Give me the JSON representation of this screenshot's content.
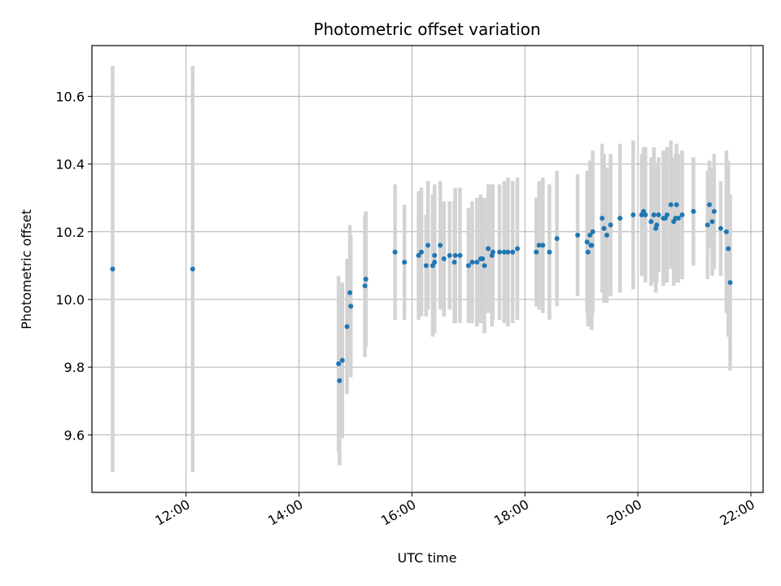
{
  "chart_data": {
    "type": "scatter",
    "title": "Photometric offset variation",
    "xlabel": "UTC time",
    "ylabel": "Photometric offset",
    "x_unit": "hours (UTC)",
    "xlim": [
      "10:20",
      "22:13"
    ],
    "ylim": [
      9.43,
      10.75
    ],
    "x_ticks": [
      "12:00",
      "14:00",
      "16:00",
      "18:00",
      "20:00",
      "22:00"
    ],
    "y_ticks": [
      "9.6",
      "9.8",
      "10.0",
      "10.2",
      "10.4",
      "10.6"
    ],
    "grid": true,
    "colors": {
      "points": "#1f77b4",
      "errorbars": "#d3d3d3",
      "grid": "#b0b0b0"
    },
    "series": [
      {
        "x": [
          "10:42",
          "12:07",
          "14:42",
          "14:43",
          "14:46",
          "14:51",
          "14:54",
          "14:55",
          "15:10",
          "15:11",
          "15:42",
          "15:52",
          "16:07",
          "16:10",
          "16:15",
          "16:17",
          "16:22",
          "16:24",
          "16:24",
          "16:30",
          "16:34",
          "16:40",
          "16:45",
          "16:46",
          "16:51",
          "17:00",
          "17:04",
          "17:09",
          "17:13",
          "17:15",
          "17:17",
          "17:21",
          "17:25",
          "17:26",
          "17:33",
          "17:38",
          "17:42",
          "17:47",
          "17:52",
          "18:12",
          "18:15",
          "18:19",
          "18:26",
          "18:34",
          "18:56",
          "19:06",
          "19:07",
          "19:09",
          "19:10",
          "19:11",
          "19:12",
          "19:22",
          "19:24",
          "19:27",
          "19:31",
          "19:41",
          "19:55",
          "20:04",
          "20:06",
          "20:08",
          "20:14",
          "20:17",
          "20:19",
          "20:20",
          "20:22",
          "20:27",
          "20:29",
          "20:31",
          "20:35",
          "20:38",
          "20:40",
          "20:41",
          "20:43",
          "20:47",
          "20:59",
          "21:14",
          "21:16",
          "21:19",
          "21:21",
          "21:28",
          "21:34",
          "21:36",
          "21:38"
        ],
        "y": [
          10.09,
          10.09,
          9.81,
          9.76,
          9.82,
          9.92,
          10.02,
          9.98,
          10.04,
          10.06,
          10.14,
          10.11,
          10.13,
          10.14,
          10.1,
          10.16,
          10.1,
          10.13,
          10.11,
          10.16,
          10.12,
          10.13,
          10.11,
          10.13,
          10.13,
          10.1,
          10.11,
          10.11,
          10.12,
          10.12,
          10.1,
          10.15,
          10.13,
          10.14,
          10.14,
          10.14,
          10.14,
          10.14,
          10.15,
          10.14,
          10.16,
          10.16,
          10.14,
          10.18,
          10.19,
          10.17,
          10.14,
          10.19,
          10.16,
          10.16,
          10.2,
          10.24,
          10.21,
          10.19,
          10.22,
          10.24,
          10.25,
          10.25,
          10.26,
          10.25,
          10.23,
          10.25,
          10.21,
          10.22,
          10.25,
          10.24,
          10.24,
          10.25,
          10.28,
          10.23,
          10.24,
          10.28,
          10.24,
          10.25,
          10.26,
          10.22,
          10.28,
          10.23,
          10.26,
          10.21,
          10.2,
          10.15,
          10.05
        ],
        "error": [
          0.6,
          0.6,
          0.26,
          0.25,
          0.23,
          0.2,
          0.2,
          0.21,
          0.21,
          0.2,
          0.2,
          0.17,
          0.19,
          0.19,
          0.15,
          0.19,
          0.21,
          0.21,
          0.21,
          0.19,
          0.17,
          0.16,
          0.18,
          0.2,
          0.2,
          0.17,
          0.18,
          0.19,
          0.19,
          0.18,
          0.2,
          0.19,
          0.21,
          0.2,
          0.2,
          0.21,
          0.22,
          0.21,
          0.21,
          0.16,
          0.19,
          0.2,
          0.2,
          0.2,
          0.18,
          0.21,
          0.22,
          0.22,
          0.24,
          0.25,
          0.24,
          0.22,
          0.22,
          0.2,
          0.21,
          0.22,
          0.22,
          0.18,
          0.19,
          0.2,
          0.19,
          0.2,
          0.19,
          0.17,
          0.17,
          0.2,
          0.19,
          0.2,
          0.19,
          0.19,
          0.19,
          0.18,
          0.19,
          0.19,
          0.16,
          0.16,
          0.13,
          0.16,
          0.17,
          0.14,
          0.24,
          0.26,
          0.26
        ]
      }
    ]
  }
}
